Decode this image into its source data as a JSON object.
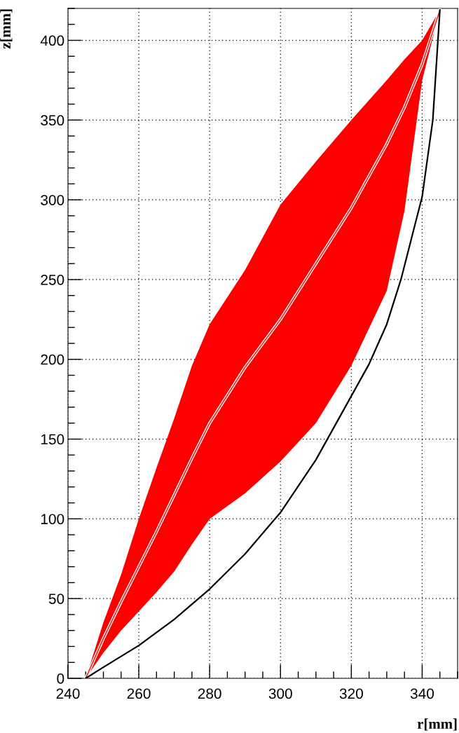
{
  "chart_data": {
    "type": "line",
    "xlabel": "r[mm]",
    "ylabel": "z[mm]",
    "xlim": [
      240,
      350
    ],
    "xticks": [
      240,
      260,
      280,
      300,
      320,
      340
    ],
    "ylim": [
      0,
      420
    ],
    "yticks": [
      0,
      50,
      100,
      150,
      200,
      250,
      300,
      350,
      400
    ],
    "grid": true,
    "legend": false,
    "marker": "none",
    "line_style": "solid",
    "series": [
      {
        "color": "#ff0000",
        "x": [
          245,
          250,
          255,
          260,
          265,
          270,
          275,
          280,
          290,
          300,
          310,
          320,
          330,
          335,
          340,
          345
        ],
        "values": [
          0,
          25,
          48,
          70,
          92,
          115,
          138,
          160,
          195,
          225,
          260,
          295,
          335,
          358,
          385,
          419
        ],
        "lower": [
          0,
          16,
          30,
          42,
          54,
          67,
          84,
          100,
          116,
          136,
          160,
          196,
          243,
          293,
          375,
          419
        ],
        "upper": [
          0,
          35,
          65,
          100,
          132,
          163,
          196,
          222,
          256,
          297,
          324,
          350,
          375,
          388,
          400,
          419
        ]
      },
      {
        "color": "#000000",
        "x": [
          245,
          250,
          260,
          270,
          280,
          290,
          300,
          310,
          320,
          325,
          330,
          334,
          340,
          343,
          345
        ],
        "values": [
          0,
          7,
          20.6,
          37,
          56,
          78,
          104,
          137,
          177,
          197,
          222,
          250,
          302,
          350,
          419
        ]
      }
    ]
  }
}
